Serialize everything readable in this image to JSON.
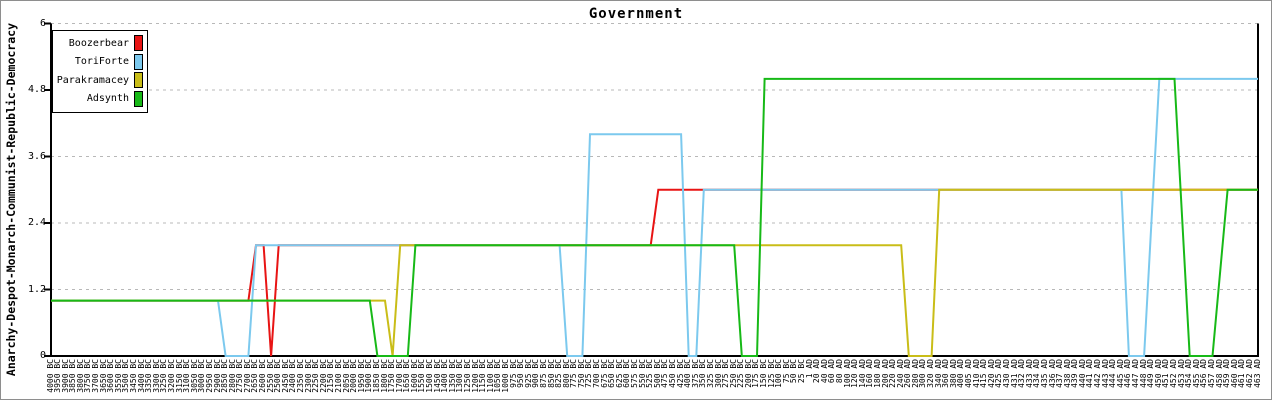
{
  "chart_data": {
    "type": "line",
    "title": "Government",
    "ylabel": "Anarchy-Despot-Monarch-Communist-Republic-Democracy",
    "xlabel": "",
    "ylim": [
      0,
      6
    ],
    "yticks": [
      "0",
      "1.2",
      "2.4",
      "3.6",
      "4.8",
      "6"
    ],
    "grid": "dashed-horizontal",
    "legend_position": "top-left",
    "government_scale": [
      "Anarchy=0",
      "Despotism=1",
      "Monarchy=2",
      "Communism=3",
      "Republic=4",
      "Democracy=5"
    ],
    "colors": {
      "axis": "#000000",
      "grid": "#b8b8b8",
      "background": "#ffffff",
      "border": "#8e8e8e"
    },
    "x_labels": [
      "4000 BC",
      "3950 BC",
      "3900 BC",
      "3850 BC",
      "3800 BC",
      "3750 BC",
      "3700 BC",
      "3650 BC",
      "3600 BC",
      "3550 BC",
      "3500 BC",
      "3450 BC",
      "3400 BC",
      "3350 BC",
      "3300 BC",
      "3250 BC",
      "3200 BC",
      "3150 BC",
      "3100 BC",
      "3050 BC",
      "3000 BC",
      "2950 BC",
      "2900 BC",
      "2850 BC",
      "2800 BC",
      "2750 BC",
      "2700 BC",
      "2650 BC",
      "2600 BC",
      "2550 BC",
      "2500 BC",
      "2450 BC",
      "2400 BC",
      "2350 BC",
      "2300 BC",
      "2250 BC",
      "2200 BC",
      "2150 BC",
      "2100 BC",
      "2050 BC",
      "2000 BC",
      "1950 BC",
      "1900 BC",
      "1850 BC",
      "1800 BC",
      "1750 BC",
      "1700 BC",
      "1650 BC",
      "1600 BC",
      "1550 BC",
      "1500 BC",
      "1450 BC",
      "1400 BC",
      "1350 BC",
      "1300 BC",
      "1250 BC",
      "1200 BC",
      "1150 BC",
      "1100 BC",
      "1050 BC",
      "1000 BC",
      "975 BC",
      "950 BC",
      "925 BC",
      "900 BC",
      "875 BC",
      "850 BC",
      "825 BC",
      "800 BC",
      "775 BC",
      "750 BC",
      "725 BC",
      "700 BC",
      "675 BC",
      "650 BC",
      "625 BC",
      "600 BC",
      "575 BC",
      "550 BC",
      "525 BC",
      "500 BC",
      "475 BC",
      "450 BC",
      "425 BC",
      "400 BC",
      "375 BC",
      "350 BC",
      "325 BC",
      "300 BC",
      "275 BC",
      "250 BC",
      "225 BC",
      "200 BC",
      "175 BC",
      "150 BC",
      "125 BC",
      "100 BC",
      "75 BC",
      "50 BC",
      "25 BC",
      "1 AD",
      "20 AD",
      "40 AD",
      "60 AD",
      "80 AD",
      "100 AD",
      "120 AD",
      "140 AD",
      "160 AD",
      "180 AD",
      "200 AD",
      "220 AD",
      "240 AD",
      "260 AD",
      "280 AD",
      "300 AD",
      "320 AD",
      "340 AD",
      "360 AD",
      "380 AD",
      "400 AD",
      "405 AD",
      "410 AD",
      "415 AD",
      "420 AD",
      "425 AD",
      "430 AD",
      "431 AD",
      "432 AD",
      "433 AD",
      "434 AD",
      "435 AD",
      "436 AD",
      "437 AD",
      "438 AD",
      "439 AD",
      "440 AD",
      "441 AD",
      "442 AD",
      "443 AD",
      "444 AD",
      "445 AD",
      "446 AD",
      "447 AD",
      "448 AD",
      "449 AD",
      "450 AD",
      "451 AD",
      "452 AD",
      "453 AD",
      "454 AD",
      "455 AD",
      "456 AD",
      "457 AD",
      "458 AD",
      "459 AD",
      "460 AD",
      "461 AD",
      "462 AD",
      "463 AD"
    ],
    "series": [
      {
        "name": "Boozerbear",
        "color": "#e81414",
        "points": [
          [
            "4000 BC",
            1
          ],
          [
            "2700 BC",
            1
          ],
          [
            "2650 BC",
            2
          ],
          [
            "2600 BC",
            2
          ],
          [
            "2550 BC",
            0
          ],
          [
            "2500 BC",
            2
          ],
          [
            "525 BC",
            2
          ],
          [
            "500 BC",
            3
          ],
          [
            "463 AD",
            3
          ]
        ]
      },
      {
        "name": "ToriForte",
        "color": "#7cc9ee",
        "points": [
          [
            "4000 BC",
            1
          ],
          [
            "2900 BC",
            1
          ],
          [
            "2850 BC",
            0
          ],
          [
            "2700 BC",
            0
          ],
          [
            "2650 BC",
            2
          ],
          [
            "825 BC",
            2
          ],
          [
            "800 BC",
            0
          ],
          [
            "750 BC",
            0
          ],
          [
            "725 BC",
            4
          ],
          [
            "425 BC",
            4
          ],
          [
            "400 BC",
            0
          ],
          [
            "375 BC",
            0
          ],
          [
            "350 BC",
            3
          ],
          [
            "445 AD",
            3
          ],
          [
            "446 AD",
            0
          ],
          [
            "448 AD",
            0
          ],
          [
            "450 AD",
            5
          ],
          [
            "463 AD",
            5
          ]
        ]
      },
      {
        "name": "Parakramacey",
        "color": "#c9bd18",
        "points": [
          [
            "4000 BC",
            1
          ],
          [
            "1800 BC",
            1
          ],
          [
            "1750 BC",
            0
          ],
          [
            "1700 BC",
            2
          ],
          [
            "240 AD",
            2
          ],
          [
            "260 AD",
            0
          ],
          [
            "320 AD",
            0
          ],
          [
            "340 AD",
            3
          ],
          [
            "463 AD",
            3
          ]
        ]
      },
      {
        "name": "Adsynth",
        "color": "#17b917",
        "points": [
          [
            "4000 BC",
            1
          ],
          [
            "1900 BC",
            1
          ],
          [
            "1850 BC",
            0
          ],
          [
            "1650 BC",
            0
          ],
          [
            "1600 BC",
            2
          ],
          [
            "250 BC",
            2
          ],
          [
            "225 BC",
            0
          ],
          [
            "175 BC",
            0
          ],
          [
            "150 BC",
            5
          ],
          [
            "452 AD",
            5
          ],
          [
            "454 AD",
            0
          ],
          [
            "457 AD",
            0
          ],
          [
            "459 AD",
            3
          ],
          [
            "463 AD",
            3
          ]
        ]
      }
    ]
  }
}
